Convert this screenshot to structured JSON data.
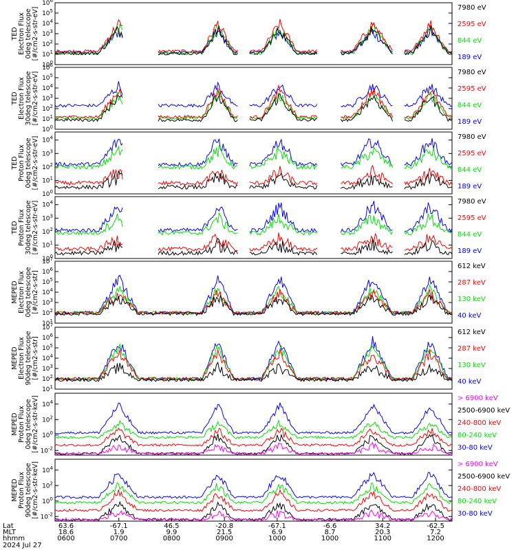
{
  "chart_data": [
    {
      "type": "line",
      "ylabel": [
        "TED",
        "Electron Flux",
        "0deg telescope",
        "[#/cm2-s-str-eV]"
      ],
      "yticks": [
        "10^0",
        "10^1",
        "10^2",
        "10^3",
        "10^4",
        "10^5",
        "10^6"
      ],
      "ylim_exp": [
        0,
        6
      ],
      "series": [
        {
          "name": "7980 eV",
          "color": "#000000",
          "base": 1.1,
          "peak": 3.4
        },
        {
          "name": "2595 eV",
          "color": "#ff0000",
          "base": 1.3,
          "peak": 4.0
        },
        {
          "name": "844 eV",
          "color": "#00e000",
          "base": 1.1,
          "peak": 3.6
        },
        {
          "name": "189 eV",
          "color": "#0000ff",
          "base": 1.2,
          "peak": 3.2
        }
      ]
    },
    {
      "type": "line",
      "ylabel": [
        "TED",
        "Electron Flux",
        "30deg telescope",
        "[#/cm2-s-str-eV]"
      ],
      "yticks": [
        "10^0",
        "10^1",
        "10^2",
        "10^3",
        "10^4",
        "10^5",
        "10^6"
      ],
      "ylim_exp": [
        0,
        6
      ],
      "series": [
        {
          "name": "7980 eV",
          "color": "#000000",
          "base": 0.9,
          "peak": 3.2
        },
        {
          "name": "2595 eV",
          "color": "#ff0000",
          "base": 1.2,
          "peak": 3.8
        },
        {
          "name": "844 eV",
          "color": "#00e000",
          "base": 1.1,
          "peak": 3.3
        },
        {
          "name": "189 eV",
          "color": "#0000ff",
          "base": 2.3,
          "peak": 4.2
        }
      ]
    },
    {
      "type": "line",
      "ylabel": [
        "TED",
        "Proton Flux",
        "0deg telescope",
        "[#/cm2-s-str-eV]"
      ],
      "yticks": [
        "10^0",
        "10^1",
        "10^2",
        "10^3",
        "10^4"
      ],
      "ylim_exp": [
        0,
        4.6
      ],
      "series": [
        {
          "name": "7980 eV",
          "color": "#000000",
          "base": 0.5,
          "peak": 1.2
        },
        {
          "name": "2595 eV",
          "color": "#ff0000",
          "base": 0.8,
          "peak": 1.6
        },
        {
          "name": "844 eV",
          "color": "#00e000",
          "base": 2.0,
          "peak": 3.2
        },
        {
          "name": "189 eV",
          "color": "#0000ff",
          "base": 2.2,
          "peak": 4.0
        }
      ]
    },
    {
      "type": "line",
      "ylabel": [
        "TED",
        "Proton Flux",
        "30deg telescope",
        "[#/cm2-s-str-eV]"
      ],
      "yticks": [
        "10^0",
        "10^1",
        "10^2",
        "10^3",
        "10^4"
      ],
      "ylim_exp": [
        0,
        4.6
      ],
      "series": [
        {
          "name": "7980 eV",
          "color": "#000000",
          "base": 0.4,
          "peak": 1.0
        },
        {
          "name": "2595 eV",
          "color": "#ff0000",
          "base": 0.7,
          "peak": 1.5
        },
        {
          "name": "844 eV",
          "color": "#00e000",
          "base": 1.9,
          "peak": 3.0
        },
        {
          "name": "189 eV",
          "color": "#0000ff",
          "base": 2.1,
          "peak": 3.9
        }
      ]
    },
    {
      "type": "line",
      "ylabel": [
        "MEPED",
        "Electron Flux",
        "0deg telescope",
        "[#/cm2-s-str]"
      ],
      "yticks": [
        "10^1",
        "10^2",
        "10^3",
        "10^4",
        "10^5",
        "10^6",
        "10^7"
      ],
      "ylim_exp": [
        1,
        7
      ],
      "series": [
        {
          "name": "612 keV",
          "color": "#000000",
          "base": 1.9,
          "peak": 3.5
        },
        {
          "name": "287 keV",
          "color": "#ff0000",
          "base": 2.0,
          "peak": 3.9
        },
        {
          "name": "130 keV",
          "color": "#00e000",
          "base": 2.0,
          "peak": 4.3
        },
        {
          "name": "40 keV",
          "color": "#0000ff",
          "base": 2.0,
          "peak": 5.4
        }
      ]
    },
    {
      "type": "line",
      "ylabel": [
        "MEPED",
        "Electron Flux",
        "90deg telescope",
        "[#/cm2-s-str]"
      ],
      "yticks": [
        "10^1",
        "10^2",
        "10^3",
        "10^4",
        "10^5",
        "10^6",
        "10^7"
      ],
      "ylim_exp": [
        1,
        7
      ],
      "series": [
        {
          "name": "612 keV",
          "color": "#000000",
          "base": 1.9,
          "peak": 3.1
        },
        {
          "name": "287 keV",
          "color": "#ff0000",
          "base": 2.0,
          "peak": 4.5
        },
        {
          "name": "130 keV",
          "color": "#00e000",
          "base": 2.0,
          "peak": 5.1
        },
        {
          "name": "40 keV",
          "color": "#0000ff",
          "base": 2.0,
          "peak": 5.6
        }
      ]
    },
    {
      "type": "line",
      "ylabel": [
        "MEPED",
        "Proton Flux",
        "0deg telescope",
        "[#/cm2-s-str-keV]"
      ],
      "yticks": [
        "10^-2",
        "10^0",
        "10^2",
        "10^4"
      ],
      "ylim_exp": [
        -2.6,
        5.4
      ],
      "series": [
        {
          "name": "> 6900 keV",
          "color": "#ff00ff",
          "base": -2.4,
          "peak": -1.5
        },
        {
          "name": "2500-6900 keV",
          "color": "#000000",
          "base": -2.4,
          "peak": -0.2
        },
        {
          "name": "240-800 keV",
          "color": "#ff0000",
          "base": -1.3,
          "peak": 0.6
        },
        {
          "name": "80-240 keV",
          "color": "#00e000",
          "base": -0.3,
          "peak": 1.6
        },
        {
          "name": "30-80 keV",
          "color": "#0000ff",
          "base": 0.3,
          "peak": 3.8
        }
      ]
    },
    {
      "type": "line",
      "ylabel": [
        "MEPED",
        "Proton Flux",
        "90deg telescope",
        "[#/cm2-s-str-keV]"
      ],
      "yticks": [
        "10^-2",
        "10^0",
        "10^2",
        "10^4"
      ],
      "ylim_exp": [
        -2.6,
        5.4
      ],
      "series": [
        {
          "name": "> 6900 keV",
          "color": "#ff00ff",
          "base": -2.4,
          "peak": -1.6
        },
        {
          "name": "2500-6900 keV",
          "color": "#000000",
          "base": -2.4,
          "peak": -0.4
        },
        {
          "name": "240-800 keV",
          "color": "#ff0000",
          "base": -1.2,
          "peak": 1.0
        },
        {
          "name": "80-240 keV",
          "color": "#00e000",
          "base": -0.2,
          "peak": 2.0
        },
        {
          "name": "30-80 keV",
          "color": "#0000ff",
          "base": 0.5,
          "peak": 3.6
        }
      ]
    }
  ],
  "x_axis": {
    "rows": [
      {
        "label": "Lat",
        "values": [
          "63.6",
          "-67.1",
          "46.5",
          "-20.8",
          "-67.1",
          "-6.6",
          "34.2",
          "-62.5"
        ]
      },
      {
        "label": "MLT",
        "values": [
          "18.6",
          "1.9",
          "9.9",
          "21.5",
          "6.9",
          "8.7",
          "20.3",
          "7.2"
        ]
      },
      {
        "label": "hhmm",
        "values": [
          "0600",
          "0700",
          "0800",
          "0900",
          "1000",
          "1000",
          "1100",
          "1200"
        ]
      }
    ],
    "date": "2024 Jul 27"
  }
}
